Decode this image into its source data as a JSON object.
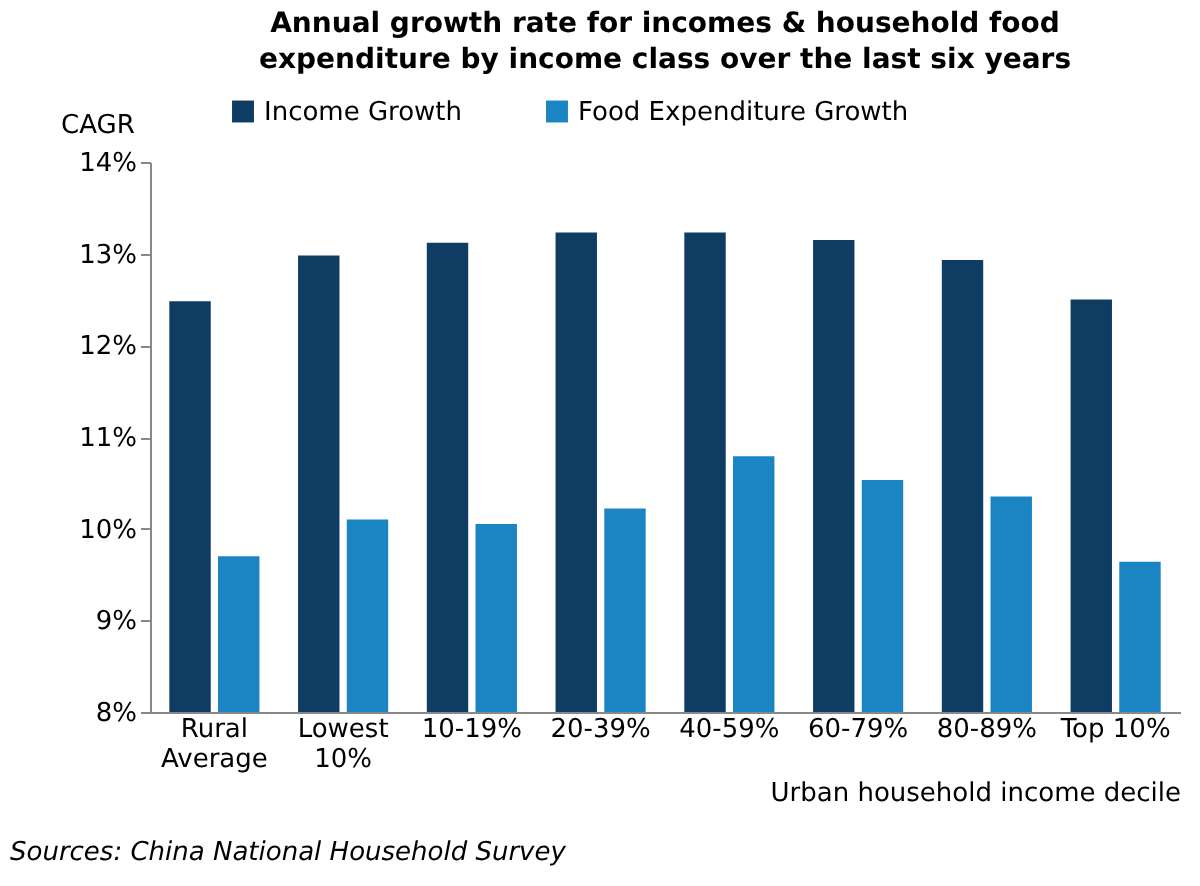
{
  "chart_data": {
    "type": "bar",
    "title": "Annual growth rate for incomes & household food expenditure by income class over the last six years",
    "ylabel": "CAGR",
    "xlabel": "Urban household income decile",
    "categories": [
      "Rural\nAverage",
      "Lowest\n10%",
      "10-19%",
      "20-39%",
      "40-59%",
      "60-79%",
      "80-89%",
      "Top 10%"
    ],
    "series": [
      {
        "name": "Income Growth",
        "color": "#0e3c62",
        "values": [
          12.48,
          12.98,
          13.12,
          13.23,
          13.23,
          13.15,
          12.93,
          12.5
        ]
      },
      {
        "name": "Food Expenditure Growth",
        "color": "#1b84c3",
        "values": [
          9.7,
          10.1,
          10.05,
          10.22,
          10.79,
          10.53,
          10.35,
          9.64
        ]
      }
    ],
    "ylim": [
      8,
      14
    ],
    "yticks": [
      {
        "value": 8,
        "label": "8%"
      },
      {
        "value": 9,
        "label": "9%"
      },
      {
        "value": 10,
        "label": "10%"
      },
      {
        "value": 11,
        "label": "11%"
      },
      {
        "value": 12,
        "label": "12%"
      },
      {
        "value": 13,
        "label": "13%"
      },
      {
        "value": 14,
        "label": "14%"
      }
    ],
    "grid": false,
    "legend": "top",
    "annotations": [
      "Sources: China National Household Survey"
    ]
  }
}
